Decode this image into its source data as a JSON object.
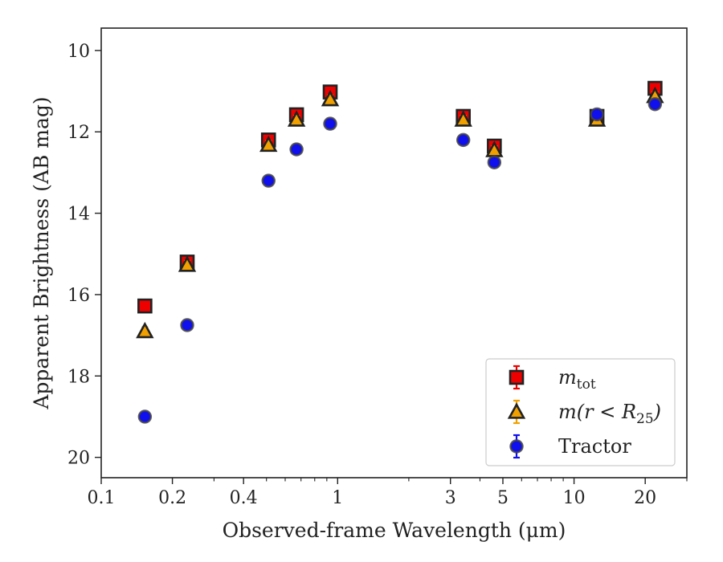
{
  "chart_data": {
    "type": "scatter",
    "xlabel": "Observed-frame Wavelength (μm)",
    "ylabel": "Apparent Brightness (AB mag)",
    "x_scale": "log",
    "xlim": [
      0.1,
      30
    ],
    "ylim": [
      20.5,
      9.45
    ],
    "y_inverted": true,
    "grid": false,
    "legend_position": "lower-right",
    "x_ticks": [
      {
        "value": 0.1,
        "label": "0.1"
      },
      {
        "value": 0.2,
        "label": "0.2"
      },
      {
        "value": 0.4,
        "label": "0.4"
      },
      {
        "value": 1,
        "label": "1"
      },
      {
        "value": 3,
        "label": "3"
      },
      {
        "value": 5,
        "label": "5"
      },
      {
        "value": 10,
        "label": "10"
      },
      {
        "value": 20,
        "label": "20"
      }
    ],
    "y_ticks": [
      {
        "value": 10,
        "label": "10"
      },
      {
        "value": 12,
        "label": "12"
      },
      {
        "value": 14,
        "label": "14"
      },
      {
        "value": 16,
        "label": "16"
      },
      {
        "value": 18,
        "label": "18"
      },
      {
        "value": 20,
        "label": "20"
      }
    ],
    "series": [
      {
        "name": "m_tot",
        "legend_main": "m",
        "legend_sub": "tot",
        "marker": "square",
        "color": "#ee0000",
        "edge": "#222222",
        "x": [
          0.153,
          0.231,
          0.51,
          0.67,
          0.93,
          3.4,
          4.6,
          12.5,
          22.0
        ],
        "y": [
          16.28,
          15.2,
          12.2,
          11.58,
          11.02,
          11.62,
          12.35,
          11.62,
          10.93
        ]
      },
      {
        "name": "m(r < R_25)",
        "legend_main": "m(r < R",
        "legend_sub": "25",
        "legend_suffix": ")",
        "marker": "triangle",
        "color": "#f0a000",
        "edge": "#222222",
        "x": [
          0.153,
          0.231,
          0.51,
          0.67,
          0.93,
          3.4,
          4.6,
          12.5,
          22.0
        ],
        "y": [
          16.9,
          15.27,
          12.32,
          11.7,
          11.2,
          11.7,
          12.45,
          11.7,
          11.12
        ]
      },
      {
        "name": "Tractor",
        "legend_main": "Tractor",
        "marker": "circle",
        "color": "#1010ee",
        "edge": "#444444",
        "x": [
          0.153,
          0.231,
          0.51,
          0.67,
          0.93,
          3.4,
          4.6,
          12.5,
          22.0
        ],
        "y": [
          19.0,
          16.75,
          13.2,
          12.43,
          11.8,
          12.2,
          12.75,
          11.57,
          11.32
        ]
      }
    ]
  }
}
